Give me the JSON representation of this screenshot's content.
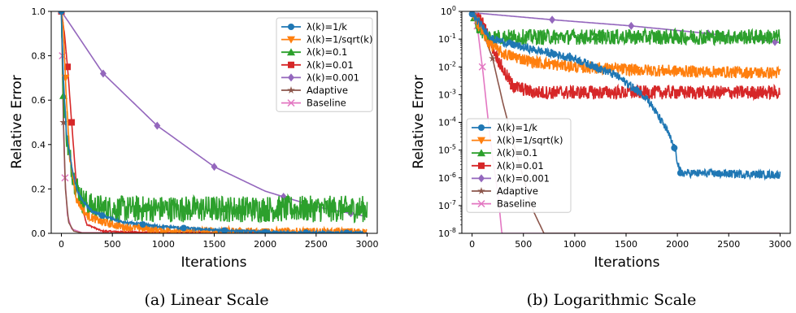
{
  "chart_data": [
    {
      "type": "line",
      "caption": "(a) Linear Scale",
      "xlabel": "Iterations",
      "ylabel": "Relative Error",
      "xlim": [
        -100,
        3100
      ],
      "ylim": [
        0,
        1
      ],
      "yscale": "linear",
      "xticks": [
        0,
        500,
        1000,
        1500,
        2000,
        2500,
        3000
      ],
      "yticks": [
        0.0,
        0.2,
        0.4,
        0.6,
        0.8,
        1.0
      ],
      "legend_position": "top-right",
      "series": [
        {
          "name": "λ(k)=1/k",
          "color": "#1f77b4",
          "marker": "circle",
          "points": [
            [
              0,
              1.0
            ],
            [
              20,
              0.7
            ],
            [
              50,
              0.45
            ],
            [
              100,
              0.3
            ],
            [
              150,
              0.2
            ],
            [
              200,
              0.15
            ],
            [
              300,
              0.1
            ],
            [
              400,
              0.08
            ],
            [
              600,
              0.05
            ],
            [
              1000,
              0.03
            ],
            [
              1500,
              0.015
            ],
            [
              2000,
              0.005
            ],
            [
              2500,
              0.003
            ],
            [
              3000,
              0.002
            ]
          ],
          "noise": 0.006,
          "markers_at": [
            0,
            400,
            800,
            1200,
            1600,
            2000,
            2400,
            2800
          ]
        },
        {
          "name": "λ(k)=1/sqrt(k)",
          "color": "#ff7f0e",
          "marker": "triangle-down",
          "points": [
            [
              0,
              1.0
            ],
            [
              20,
              0.92
            ],
            [
              40,
              0.7
            ],
            [
              80,
              0.35
            ],
            [
              150,
              0.15
            ],
            [
              250,
              0.08
            ],
            [
              400,
              0.05
            ],
            [
              600,
              0.03
            ],
            [
              1000,
              0.015
            ],
            [
              1500,
              0.01
            ],
            [
              2000,
              0.008
            ],
            [
              3000,
              0.006
            ]
          ],
          "noise": 0.018,
          "markers_at": [
            40,
            400,
            800,
            1200,
            1600,
            2000,
            2400,
            2800
          ]
        },
        {
          "name": "λ(k)=0.1",
          "color": "#2ca02c",
          "marker": "triangle-up",
          "points": [
            [
              0,
              1.0
            ],
            [
              20,
              0.62
            ],
            [
              60,
              0.4
            ],
            [
              120,
              0.25
            ],
            [
              200,
              0.15
            ],
            [
              300,
              0.12
            ],
            [
              500,
              0.11
            ],
            [
              3000,
              0.11
            ]
          ],
          "noise": 0.06,
          "markers_at": [
            20,
            200,
            400,
            800,
            1200,
            1600,
            2000,
            2400,
            2800
          ]
        },
        {
          "name": "λ(k)=0.01",
          "color": "#d62728",
          "marker": "square",
          "points": [
            [
              0,
              1.0
            ],
            [
              30,
              0.9
            ],
            [
              60,
              0.75
            ],
            [
              100,
              0.5
            ],
            [
              150,
              0.2
            ],
            [
              250,
              0.04
            ],
            [
              400,
              0.01
            ],
            [
              800,
              0.004
            ],
            [
              3000,
              0.003
            ]
          ],
          "noise": 0.003,
          "markers_at": [
            0,
            60,
            100
          ]
        },
        {
          "name": "λ(k)=0.001",
          "color": "#9467bd",
          "marker": "diamond",
          "points": [
            [
              0,
              1.0
            ],
            [
              410,
              0.72
            ],
            [
              940,
              0.485
            ],
            [
              1500,
              0.3
            ],
            [
              2000,
              0.19
            ],
            [
              2500,
              0.12
            ],
            [
              2840,
              0.09
            ],
            [
              3000,
              0.075
            ]
          ],
          "noise": 0.0,
          "markers_at": [
            410,
            940,
            1500,
            2180,
            2840
          ]
        },
        {
          "name": "Adaptive",
          "color": "#8c564b",
          "marker": "star",
          "points": [
            [
              0,
              1.0
            ],
            [
              20,
              0.5
            ],
            [
              40,
              0.2
            ],
            [
              70,
              0.05
            ],
            [
              120,
              0.01
            ],
            [
              200,
              0.002
            ],
            [
              3000,
              0.001
            ]
          ],
          "noise": 0.0,
          "markers_at": [
            20
          ]
        },
        {
          "name": "Baseline",
          "color": "#e377c2",
          "marker": "x",
          "points": [
            [
              0,
              1.0
            ],
            [
              10,
              0.8
            ],
            [
              20,
              0.5
            ],
            [
              35,
              0.25
            ],
            [
              60,
              0.08
            ],
            [
              100,
              0.02
            ],
            [
              200,
              0.003
            ],
            [
              3000,
              0.001
            ]
          ],
          "noise": 0.0,
          "markers_at": [
            10,
            35
          ]
        }
      ]
    },
    {
      "type": "line",
      "caption": "(b) Logarithmic Scale",
      "xlabel": "Iterations",
      "ylabel": "Relative Error",
      "xlim": [
        -100,
        3100
      ],
      "ylim": [
        1e-08,
        1
      ],
      "yscale": "log",
      "xticks": [
        0,
        500,
        1000,
        1500,
        2000,
        2500,
        3000
      ],
      "ytick_exponents": [
        -8,
        -7,
        -6,
        -5,
        -4,
        -3,
        -2,
        -1,
        0
      ],
      "legend_position": "lower-left",
      "series": [
        {
          "name": "λ(k)=1/k",
          "color": "#1f77b4",
          "marker": "circle",
          "points": [
            [
              0,
              0.8
            ],
            [
              200,
              0.1
            ],
            [
              500,
              0.05
            ],
            [
              1000,
              0.02
            ],
            [
              1400,
              0.005
            ],
            [
              1700,
              0.0008
            ],
            [
              1900,
              5e-05
            ],
            [
              1970,
              1.2e-05
            ],
            [
              2030,
              1.5e-06
            ],
            [
              3000,
              1.3e-06
            ]
          ],
          "noise_log": 0.15,
          "markers_at": [
            0,
            400,
            800,
            1200,
            1600,
            1970,
            2030,
            2400,
            2800
          ]
        },
        {
          "name": "λ(k)=1/sqrt(k)",
          "color": "#ff7f0e",
          "marker": "triangle-down",
          "points": [
            [
              0,
              0.9
            ],
            [
              50,
              0.4
            ],
            [
              150,
              0.08
            ],
            [
              300,
              0.03
            ],
            [
              600,
              0.015
            ],
            [
              1000,
              0.01
            ],
            [
              1500,
              0.008
            ],
            [
              2000,
              0.007
            ],
            [
              3000,
              0.006
            ]
          ],
          "noise_log": 0.22,
          "markers_at": [
            40,
            400,
            800,
            1200,
            1600,
            2000,
            2400,
            2800
          ]
        },
        {
          "name": "λ(k)=0.1",
          "color": "#2ca02c",
          "marker": "triangle-up",
          "points": [
            [
              0,
              0.9
            ],
            [
              50,
              0.3
            ],
            [
              150,
              0.12
            ],
            [
              3000,
              0.12
            ]
          ],
          "noise_log": 0.28,
          "markers_at": [
            20,
            400,
            800,
            1200,
            1600,
            2000,
            2400,
            2800
          ]
        },
        {
          "name": "λ(k)=0.01",
          "color": "#d62728",
          "marker": "square",
          "points": [
            [
              0,
              0.9
            ],
            [
              100,
              0.4
            ],
            [
              200,
              0.05
            ],
            [
              300,
              0.008
            ],
            [
              400,
              0.002
            ],
            [
              600,
              0.0012
            ],
            [
              3000,
              0.0012
            ]
          ],
          "noise_log": 0.25,
          "markers_at": [
            400,
            800,
            1200,
            1600,
            2000,
            2400,
            2800
          ]
        },
        {
          "name": "λ(k)=0.001",
          "color": "#9467bd",
          "marker": "diamond",
          "points": [
            [
              0,
              0.9
            ],
            [
              780,
              0.5
            ],
            [
              1550,
              0.3
            ],
            [
              2300,
              0.16
            ],
            [
              3000,
              0.075
            ]
          ],
          "noise_log": 0.0,
          "markers_at": [
            780,
            1550,
            2300,
            2950
          ]
        },
        {
          "name": "Adaptive",
          "color": "#8c564b",
          "marker": "star",
          "points": [
            [
              0,
              0.9
            ],
            [
              100,
              0.2
            ],
            [
              200,
              0.02
            ],
            [
              300,
              0.0005
            ],
            [
              400,
              2e-05
            ],
            [
              500,
              1e-06
            ],
            [
              600,
              6e-08
            ],
            [
              700,
              1e-08
            ]
          ],
          "noise_log": 0.0,
          "markers_at": [
            50,
            200
          ]
        },
        {
          "name": "Baseline",
          "color": "#e377c2",
          "marker": "x",
          "points": [
            [
              0,
              0.9
            ],
            [
              50,
              0.3
            ],
            [
              100,
              0.01
            ],
            [
              150,
              0.0002
            ],
            [
              200,
              5e-06
            ],
            [
              250,
              3e-07
            ],
            [
              290,
              1e-08
            ]
          ],
          "noise_log": 0.0,
          "markers_at": [
            50,
            100
          ]
        }
      ]
    }
  ]
}
